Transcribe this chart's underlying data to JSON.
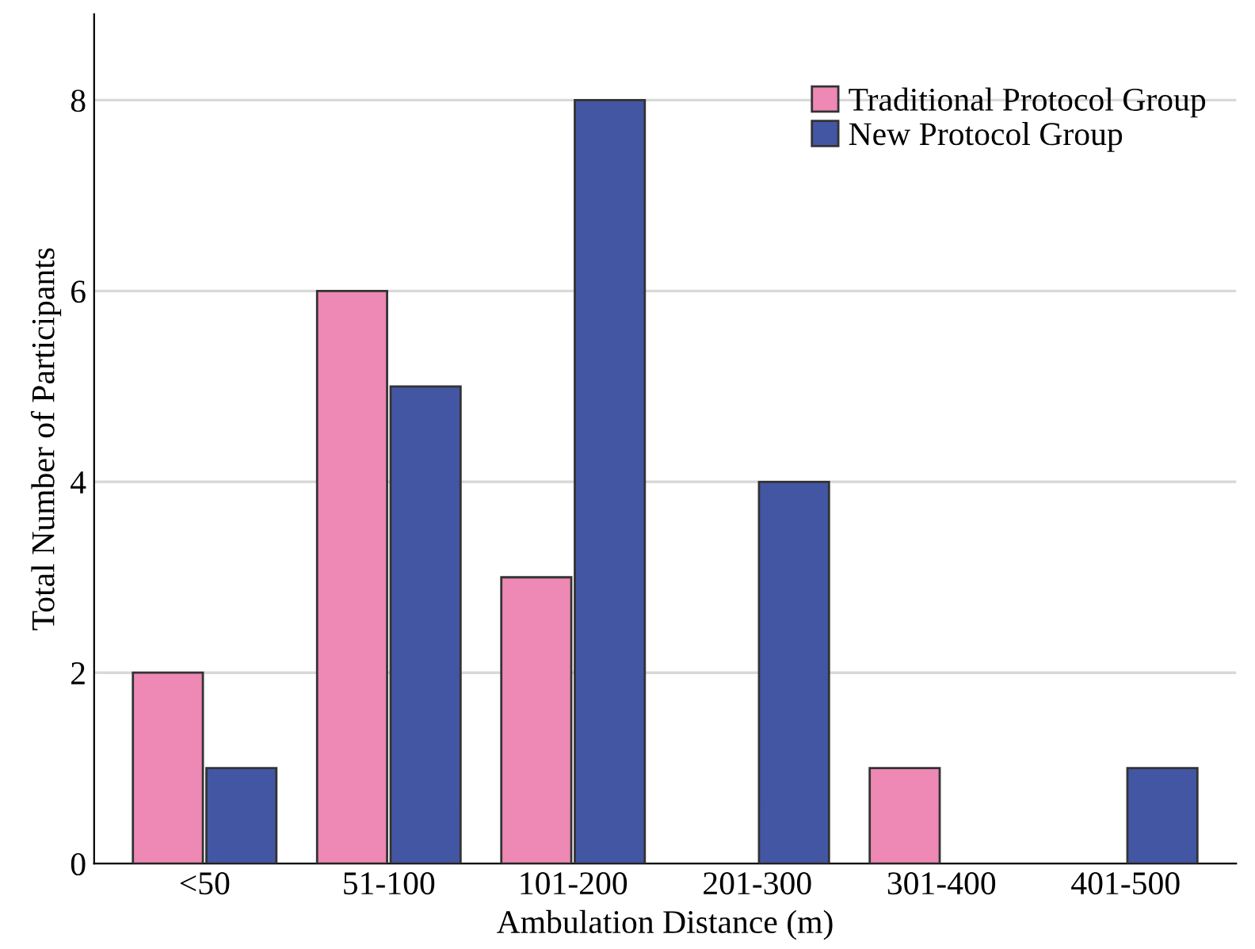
{
  "chart_data": {
    "type": "bar",
    "xlabel": "Ambulation Distance (m)",
    "ylabel": "Total Number of Participants",
    "categories": [
      "<50",
      "51-100",
      "101-200",
      "201-300",
      "301-400",
      "401-500"
    ],
    "series": [
      {
        "name": "Traditional Protocol Group",
        "color": "#ee88b4",
        "values": [
          2,
          6,
          3,
          null,
          1,
          null
        ]
      },
      {
        "name": "New Protocol Group",
        "color": "#4356a4",
        "values": [
          1,
          5,
          8,
          4,
          null,
          1
        ]
      }
    ],
    "ylim": [
      0,
      8.9
    ],
    "yticks": [
      0,
      2,
      4,
      6,
      8
    ],
    "grid": "y",
    "legend": "top right"
  }
}
